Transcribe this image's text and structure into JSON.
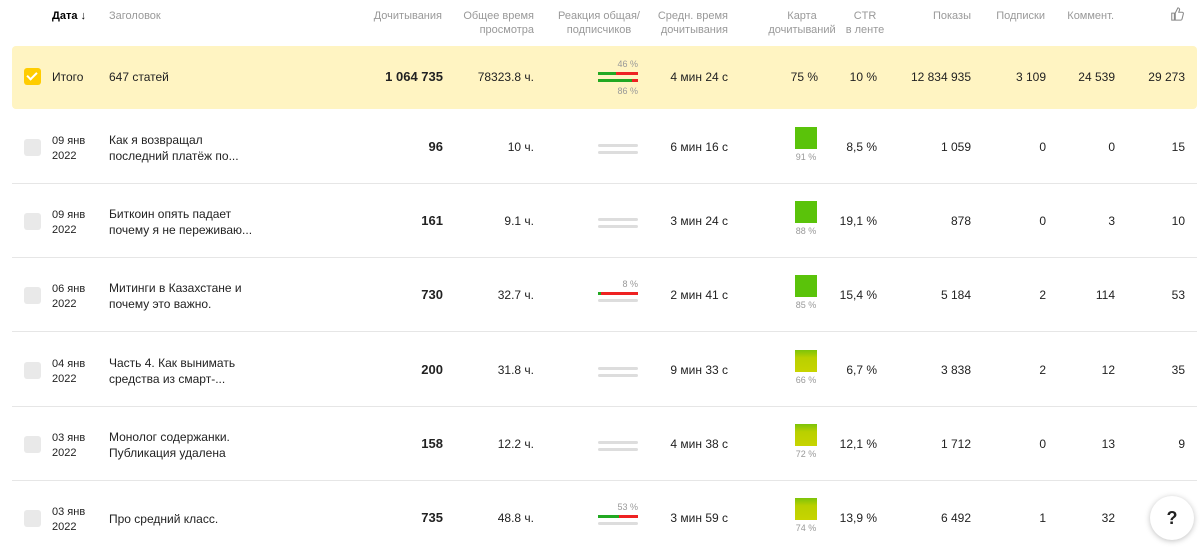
{
  "header": {
    "date": "Дата ↓",
    "title": "Заголовок",
    "reads": "Дочитывания",
    "total_time_1": "Общее время",
    "total_time_2": "просмотра",
    "reaction_1": "Реакция общая/",
    "reaction_2": "подписчиков",
    "avg_time_1": "Средн. время",
    "avg_time_2": "дочитывания",
    "map_1": "Карта",
    "map_2": "дочитываний",
    "ctr_1": "CTR",
    "ctr_2": "в ленте",
    "views": "Показы",
    "subs": "Подписки",
    "comments": "Коммент.",
    "likes_icon": "thumbs-up-icon"
  },
  "total": {
    "label": "Итого",
    "title": "647 статей",
    "reads": "1 064 735",
    "total_time": "78323.8 ч.",
    "reaction_all": "46 %",
    "reaction_subs": "86 %",
    "reaction_all_frac": 0.46,
    "reaction_subs_frac": 0.86,
    "avg_time": "4 мин 24 с",
    "map": "75 %",
    "ctr": "10 %",
    "views": "12 834 935",
    "subs": "3 109",
    "comments": "24 539",
    "likes": "29 273"
  },
  "rows": [
    {
      "date1": "09 янв",
      "date2": "2022",
      "title1": "Как я возвращал",
      "title2": "последний платёж по...",
      "reads": "96",
      "total_time": "10 ч.",
      "reaction_pct": "",
      "reaction_frac": 0,
      "avg_time": "6 мин 16 с",
      "map_pct": "91 %",
      "map_frac": 0.91,
      "ctr": "8,5 %",
      "views": "1 059",
      "subs": "0",
      "comments": "0",
      "likes": "15",
      "deleted": false
    },
    {
      "date1": "09 янв",
      "date2": "2022",
      "title1": "Биткоин опять падает",
      "title2": "почему я не переживаю...",
      "reads": "161",
      "total_time": "9.1 ч.",
      "reaction_pct": "",
      "reaction_frac": 0,
      "avg_time": "3 мин 24 с",
      "map_pct": "88 %",
      "map_frac": 0.88,
      "ctr": "19,1 %",
      "views": "878",
      "subs": "0",
      "comments": "3",
      "likes": "10",
      "deleted": false
    },
    {
      "date1": "06 янв",
      "date2": "2022",
      "title1": "Митинги в Казахстане и",
      "title2": "почему это важно.",
      "reads": "730",
      "total_time": "32.7 ч.",
      "reaction_pct": "8 %",
      "reaction_frac": 0.08,
      "avg_time": "2 мин 41 с",
      "map_pct": "85 %",
      "map_frac": 0.85,
      "ctr": "15,4 %",
      "views": "5 184",
      "subs": "2",
      "comments": "114",
      "likes": "53",
      "deleted": false
    },
    {
      "date1": "04 янв",
      "date2": "2022",
      "title1": "Часть 4. Как вынимать",
      "title2": "средства из смарт-...",
      "reads": "200",
      "total_time": "31.8 ч.",
      "reaction_pct": "",
      "reaction_frac": 0,
      "avg_time": "9 мин 33 с",
      "map_pct": "66 %",
      "map_frac": 0.66,
      "ctr": "6,7 %",
      "views": "3 838",
      "subs": "2",
      "comments": "12",
      "likes": "35",
      "deleted": false
    },
    {
      "date1": "03 янв",
      "date2": "2022",
      "title1": "Монолог содержанки.",
      "title2": "Публикация удалена",
      "reads": "158",
      "total_time": "12.2 ч.",
      "reaction_pct": "",
      "reaction_frac": 0,
      "avg_time": "4 мин 38 с",
      "map_pct": "72 %",
      "map_frac": 0.72,
      "ctr": "12,1 %",
      "views": "1 712",
      "subs": "0",
      "comments": "13",
      "likes": "9",
      "deleted": true
    },
    {
      "date1": "03 янв",
      "date2": "2022",
      "title1": "Про средний класс.",
      "title2": "",
      "reads": "735",
      "total_time": "48.8 ч.",
      "reaction_pct": "53 %",
      "reaction_frac": 0.53,
      "avg_time": "3 мин 59 с",
      "map_pct": "74 %",
      "map_frac": 0.74,
      "ctr": "13,9 %",
      "views": "6 492",
      "subs": "1",
      "comments": "32",
      "likes": "",
      "deleted": false
    }
  ],
  "help": "?",
  "colors": {
    "positive": "#22a822",
    "negative": "#e22",
    "total_bg": "#fff4c2",
    "checkbox_on": "#ffcc00",
    "map_high": "#5ac30a",
    "map_low": "#c7d400"
  }
}
